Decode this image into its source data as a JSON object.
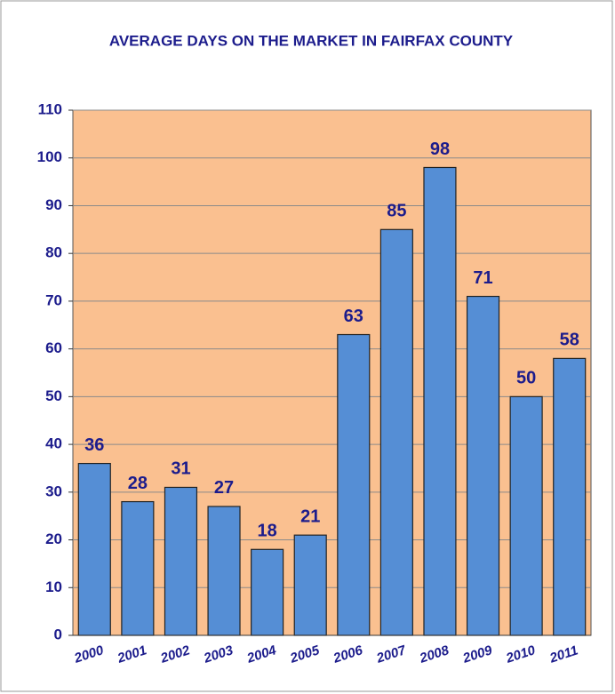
{
  "chart_data": {
    "type": "bar",
    "title": "AVERAGE DAYS ON THE MARKET IN FAIRFAX COUNTY",
    "categories": [
      "2000",
      "2001",
      "2002",
      "2003",
      "2004",
      "2005",
      "2006",
      "2007",
      "2008",
      "2009",
      "2010",
      "2011"
    ],
    "values": [
      36,
      28,
      31,
      27,
      18,
      21,
      63,
      85,
      98,
      71,
      50,
      58
    ],
    "color": "#558ed5",
    "background": "#fac090",
    "ylim": [
      0,
      110
    ],
    "yticks": [
      0,
      10,
      20,
      30,
      40,
      50,
      60,
      70,
      80,
      90,
      100,
      110
    ],
    "grid": true
  }
}
